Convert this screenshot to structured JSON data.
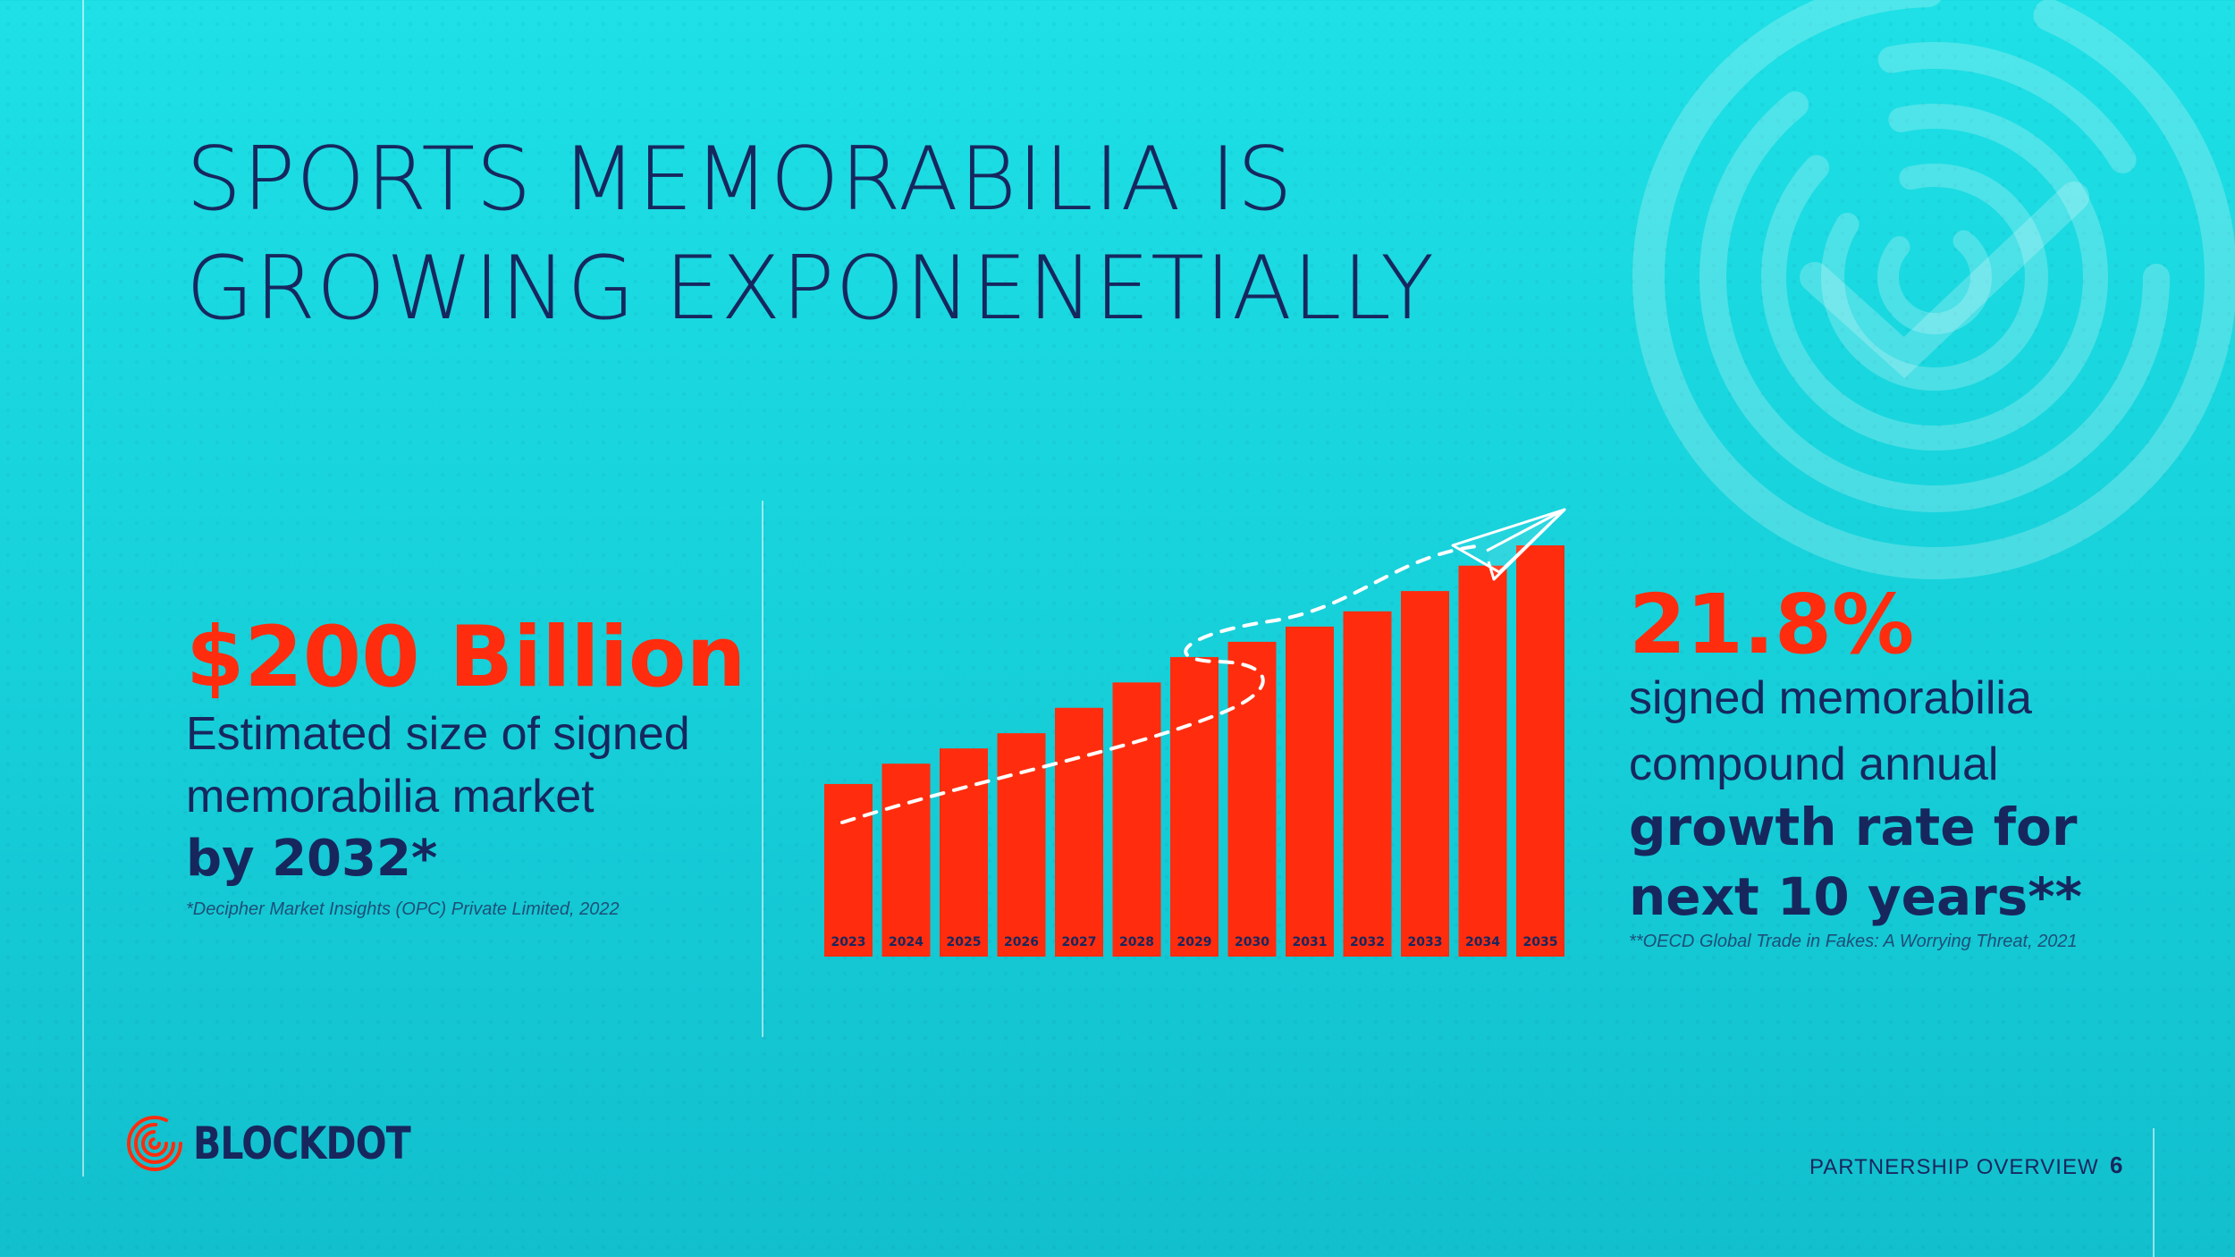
{
  "slide": {
    "title_line1": "SPORTS MEMORABILIA IS",
    "title_line2": "GROWING EXPONENETIALLY",
    "page_number": "6",
    "footer_label": "PARTNERSHIP OVERVIEW"
  },
  "left_stat": {
    "value": "$200 Billion",
    "description": "Estimated size of signed memorabilia market",
    "description_bold": "by 2032*",
    "source": "*Decipher Market Insights (OPC) Private Limited, 2022"
  },
  "right_stat": {
    "value": "21.8%",
    "description": "signed memorabilia compound annual",
    "description_bold": "growth rate for next 10 years**",
    "source": "**OECD Global Trade in Fakes: A Worrying Threat, 2021"
  },
  "logo": {
    "wordmark": "BLOCKDOT",
    "icon": "fingerprint-icon"
  },
  "colors": {
    "background": "#1ee0e6",
    "accent": "#ff2d0e",
    "navy": "#17275e"
  },
  "chart_data": {
    "type": "bar",
    "categories": [
      "2023",
      "2024",
      "2025",
      "2026",
      "2027",
      "2028",
      "2029",
      "2030",
      "2031",
      "2032",
      "2033",
      "2034",
      "2035"
    ],
    "values": [
      17,
      19,
      20.5,
      22,
      24.5,
      27,
      29.5,
      31,
      32.5,
      34,
      36,
      38.5,
      40.5
    ],
    "title": "",
    "xlabel": "",
    "ylabel": "",
    "ylim": [
      0,
      40.5
    ],
    "legend": "none",
    "grid": false,
    "annotations": [
      "dashed upward trend arrow with paper plane icon"
    ]
  }
}
